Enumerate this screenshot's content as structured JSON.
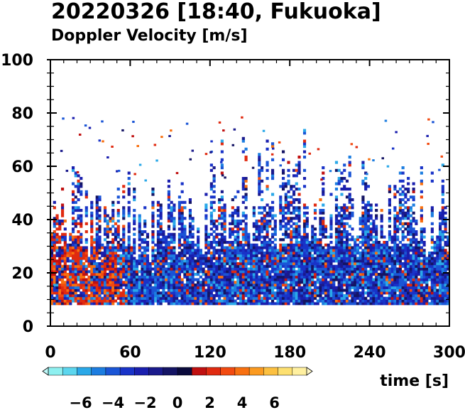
{
  "chart_data": {
    "type": "heatmap",
    "title": "20220326 [18:40, Fukuoka]",
    "subtitle": "Doppler Velocity [m/s]",
    "xlabel": "time [s]",
    "ylabel": "",
    "xlim": [
      0,
      300
    ],
    "ylim": [
      0,
      100
    ],
    "x_ticks": [
      0,
      60,
      120,
      180,
      240,
      300
    ],
    "y_ticks": [
      0,
      20,
      40,
      60,
      80,
      100
    ],
    "x_minor_step": 10,
    "y_minor_step": 5,
    "grid": false,
    "lowest_gate": 8,
    "colorbar": {
      "orientation": "horizontal",
      "placement": "bottom-left",
      "range": [
        -8,
        8
      ],
      "ticks": [
        -6,
        -4,
        -2,
        0,
        2,
        4,
        6
      ],
      "tick_labels": [
        "−6",
        "−4",
        "−2",
        "0",
        "2",
        "4",
        "6"
      ],
      "colors": [
        "#8ef0f0",
        "#5cd6ee",
        "#2aa8e8",
        "#1c7de0",
        "#1a55d6",
        "#1933c8",
        "#1a1fae",
        "#1a1a8c",
        "#141464",
        "#0a0a3c",
        "#c01010",
        "#e02a10",
        "#f24a10",
        "#f87010",
        "#fb9a20",
        "#fcc040",
        "#fde070",
        "#fff0a0"
      ]
    },
    "profile_summary": [
      {
        "t_range": [
          0,
          60
        ],
        "echo_top_m_s": 55,
        "dominant_velocity": "mixed; +1 to +3 m/s near 10–40 heights"
      },
      {
        "t_range": [
          60,
          120
        ],
        "echo_top_m_s": 50,
        "dominant_velocity": "-1 to -3"
      },
      {
        "t_range": [
          120,
          180
        ],
        "echo_top_m_s": 60,
        "dominant_velocity": "-1 to -3"
      },
      {
        "t_range": [
          180,
          240
        ],
        "echo_top_m_s": 62,
        "dominant_velocity": "-2 to -3"
      },
      {
        "t_range": [
          240,
          300
        ],
        "echo_top_m_s": 55,
        "dominant_velocity": "-2 to -3"
      }
    ]
  }
}
